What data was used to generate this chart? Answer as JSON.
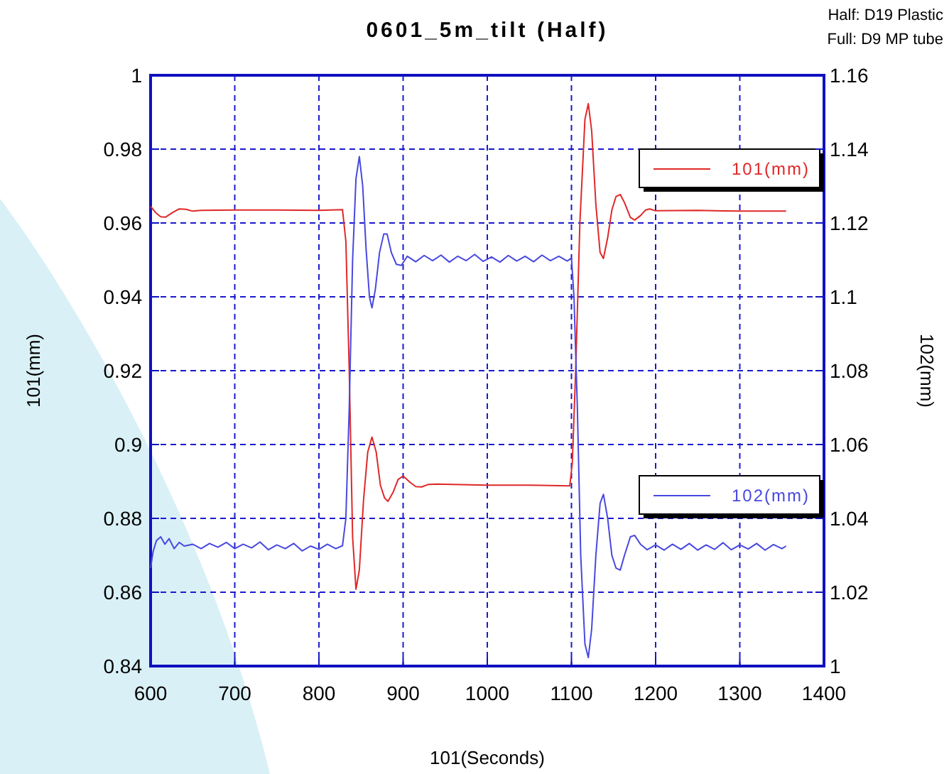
{
  "chart_data": {
    "type": "line",
    "title": "0601_5m_tilt  (Half)",
    "xlabel": "101(Seconds)",
    "ylabel": "101(mm)",
    "y2label": "102(mm)",
    "annotations": [
      "Half: D19 Plastic",
      "Full: D9  MP tube"
    ],
    "xlim": [
      600,
      1400
    ],
    "xticks": [
      600,
      700,
      800,
      900,
      1000,
      1100,
      1200,
      1300,
      1400
    ],
    "ylim": [
      0.84,
      1
    ],
    "yticks": [
      0.84,
      0.86,
      0.88,
      0.9,
      0.92,
      0.94,
      0.96,
      0.98,
      1
    ],
    "y2lim": [
      1,
      1.16
    ],
    "y2ticks": [
      1,
      1.02,
      1.04,
      1.06,
      1.08,
      1.1,
      1.12,
      1.14,
      1.16
    ],
    "grid": true,
    "legend": "right",
    "line_style": "solid",
    "series": [
      {
        "name": "101(mm)",
        "color": "#e02828",
        "x": [
          600,
          606,
          612,
          618,
          626,
          634,
          642,
          650,
          660,
          700,
          750,
          800,
          828,
          832,
          836,
          840,
          844,
          848,
          853,
          858,
          863,
          868,
          873,
          878,
          882,
          888,
          894,
          900,
          908,
          915,
          922,
          930,
          940,
          1000,
          1050,
          1098,
          1101,
          1105,
          1110,
          1116,
          1120,
          1124,
          1129,
          1134,
          1138,
          1143,
          1148,
          1153,
          1158,
          1163,
          1170,
          1175,
          1182,
          1188,
          1193,
          1200,
          1250,
          1300,
          1355
        ],
        "values": [
          0.9645,
          0.9628,
          0.9617,
          0.9616,
          0.9628,
          0.9638,
          0.9637,
          0.9632,
          0.9634,
          0.9635,
          0.9635,
          0.9634,
          0.9636,
          0.955,
          0.92,
          0.875,
          0.8608,
          0.866,
          0.885,
          0.898,
          0.902,
          0.898,
          0.889,
          0.8855,
          0.8846,
          0.887,
          0.8905,
          0.8915,
          0.8898,
          0.8886,
          0.8885,
          0.8892,
          0.8893,
          0.889,
          0.889,
          0.8888,
          0.895,
          0.92,
          0.96,
          0.988,
          0.9923,
          0.985,
          0.965,
          0.952,
          0.9504,
          0.956,
          0.9635,
          0.9672,
          0.9677,
          0.9655,
          0.9615,
          0.9608,
          0.962,
          0.9635,
          0.9638,
          0.9633,
          0.9634,
          0.9632,
          0.9632
        ]
      },
      {
        "name": "102(mm)",
        "color": "#4848e0",
        "axis": "y2",
        "x": [
          600,
          603,
          607,
          612,
          617,
          622,
          628,
          634,
          640,
          650,
          660,
          670,
          680,
          690,
          700,
          710,
          720,
          730,
          740,
          750,
          760,
          770,
          780,
          790,
          800,
          810,
          820,
          828,
          832,
          836,
          840,
          844,
          848,
          852,
          856,
          860,
          863,
          867,
          872,
          877,
          881,
          886,
          892,
          898,
          905,
          915,
          925,
          935,
          945,
          955,
          965,
          975,
          985,
          995,
          1005,
          1015,
          1025,
          1035,
          1045,
          1055,
          1065,
          1075,
          1085,
          1095,
          1100,
          1103,
          1107,
          1111,
          1116,
          1120,
          1124,
          1129,
          1134,
          1138,
          1143,
          1148,
          1153,
          1158,
          1163,
          1170,
          1175,
          1182,
          1190,
          1200,
          1210,
          1220,
          1230,
          1240,
          1250,
          1260,
          1270,
          1280,
          1290,
          1300,
          1310,
          1320,
          1330,
          1340,
          1350,
          1355
        ],
        "values": [
          1.0265,
          1.031,
          1.034,
          1.035,
          1.033,
          1.0345,
          1.0318,
          1.0335,
          1.0325,
          1.033,
          1.0318,
          1.0332,
          1.0322,
          1.0335,
          1.0318,
          1.033,
          1.032,
          1.0336,
          1.0315,
          1.0328,
          1.0318,
          1.0332,
          1.0312,
          1.0325,
          1.0316,
          1.033,
          1.0318,
          1.0326,
          1.04,
          1.07,
          1.11,
          1.132,
          1.138,
          1.13,
          1.113,
          1.1,
          1.097,
          1.102,
          1.112,
          1.117,
          1.117,
          1.112,
          1.1088,
          1.1085,
          1.111,
          1.1095,
          1.1112,
          1.1098,
          1.1113,
          1.1094,
          1.111,
          1.1098,
          1.1115,
          1.1096,
          1.1108,
          1.1094,
          1.1112,
          1.1097,
          1.111,
          1.1095,
          1.1113,
          1.1098,
          1.111,
          1.1097,
          1.1105,
          1.1,
          1.07,
          1.03,
          1.006,
          1.0023,
          1.01,
          1.03,
          1.044,
          1.0465,
          1.04,
          1.03,
          1.0265,
          1.026,
          1.03,
          1.035,
          1.0354,
          1.033,
          1.0315,
          1.0328,
          1.0314,
          1.033,
          1.0316,
          1.0332,
          1.0314,
          1.0328,
          1.0316,
          1.0334,
          1.0315,
          1.0328,
          1.0317,
          1.0332,
          1.0314,
          1.0329,
          1.0318,
          1.0325
        ]
      }
    ]
  }
}
